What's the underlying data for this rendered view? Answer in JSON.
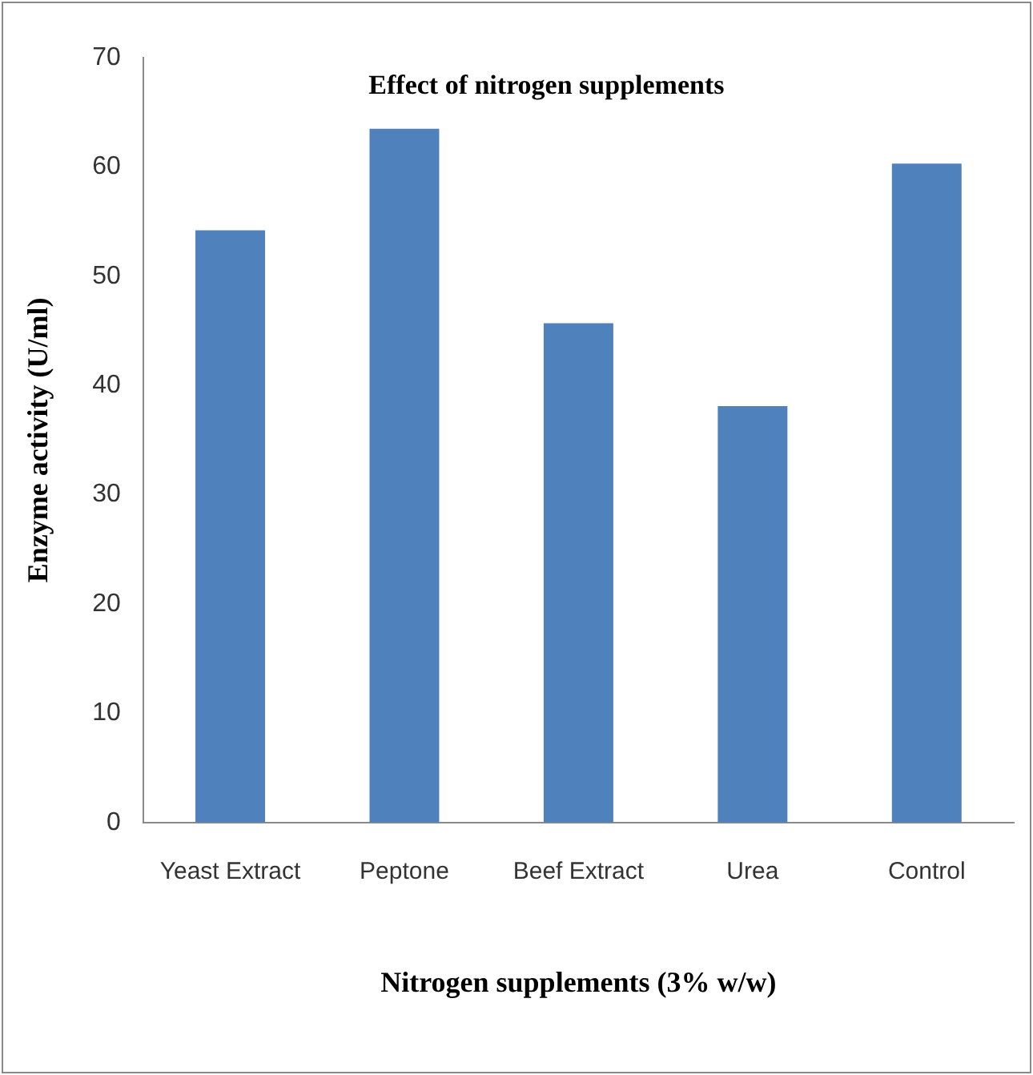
{
  "chart_data": {
    "type": "bar",
    "title": "Effect of nitrogen supplements",
    "xlabel": "Nitrogen supplements (3% w/w)",
    "ylabel": "Enzyme activity (U/ml)",
    "categories": [
      "Yeast Extract",
      "Peptone",
      "Beef Extract",
      "Urea",
      "Control"
    ],
    "values": [
      54.2,
      63.5,
      45.7,
      38.1,
      60.3
    ],
    "color": "#4f81bd",
    "ylim": [
      0,
      70
    ],
    "yticks": [
      0,
      10,
      20,
      30,
      40,
      50,
      60,
      70
    ],
    "grid": false,
    "legend": false
  }
}
